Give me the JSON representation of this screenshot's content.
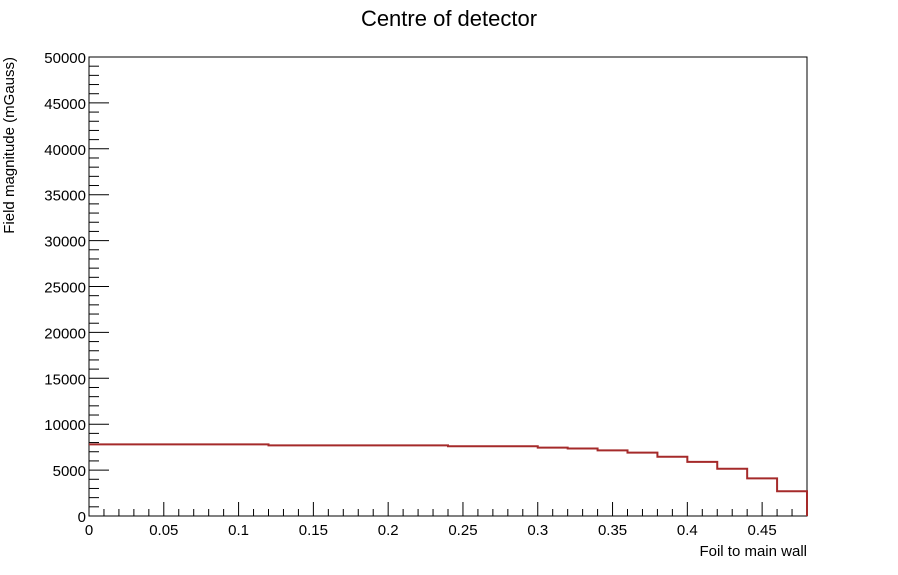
{
  "chart_data": {
    "type": "line",
    "style": "step-histogram",
    "title": "Centre of detector",
    "xlabel": "Foil to main wall",
    "ylabel": "Field magnitude (mGauss)",
    "xlim": [
      0,
      0.48
    ],
    "ylim": [
      0,
      50000
    ],
    "grid": false,
    "legend": "none",
    "x_tick_labels": [
      "0",
      "0.05",
      "0.1",
      "0.15",
      "0.2",
      "0.25",
      "0.3",
      "0.35",
      "0.4",
      "0.45"
    ],
    "x_tick_values": [
      0,
      0.05,
      0.1,
      0.15,
      0.2,
      0.25,
      0.3,
      0.35,
      0.4,
      0.45
    ],
    "y_tick_labels": [
      "0",
      "5000",
      "10000",
      "15000",
      "20000",
      "25000",
      "30000",
      "35000",
      "40000",
      "45000",
      "50000"
    ],
    "y_tick_values": [
      0,
      5000,
      10000,
      15000,
      20000,
      25000,
      30000,
      35000,
      40000,
      45000,
      50000
    ],
    "series": [
      {
        "color": "#a52a2a",
        "bin_edges": [
          0,
          0.12,
          0.24,
          0.3,
          0.32,
          0.34,
          0.36,
          0.38,
          0.4,
          0.42,
          0.44,
          0.46,
          0.48
        ],
        "values": [
          7800,
          7700,
          7600,
          7450,
          7350,
          7150,
          6900,
          6450,
          5900,
          5150,
          4100,
          2700
        ]
      }
    ]
  }
}
